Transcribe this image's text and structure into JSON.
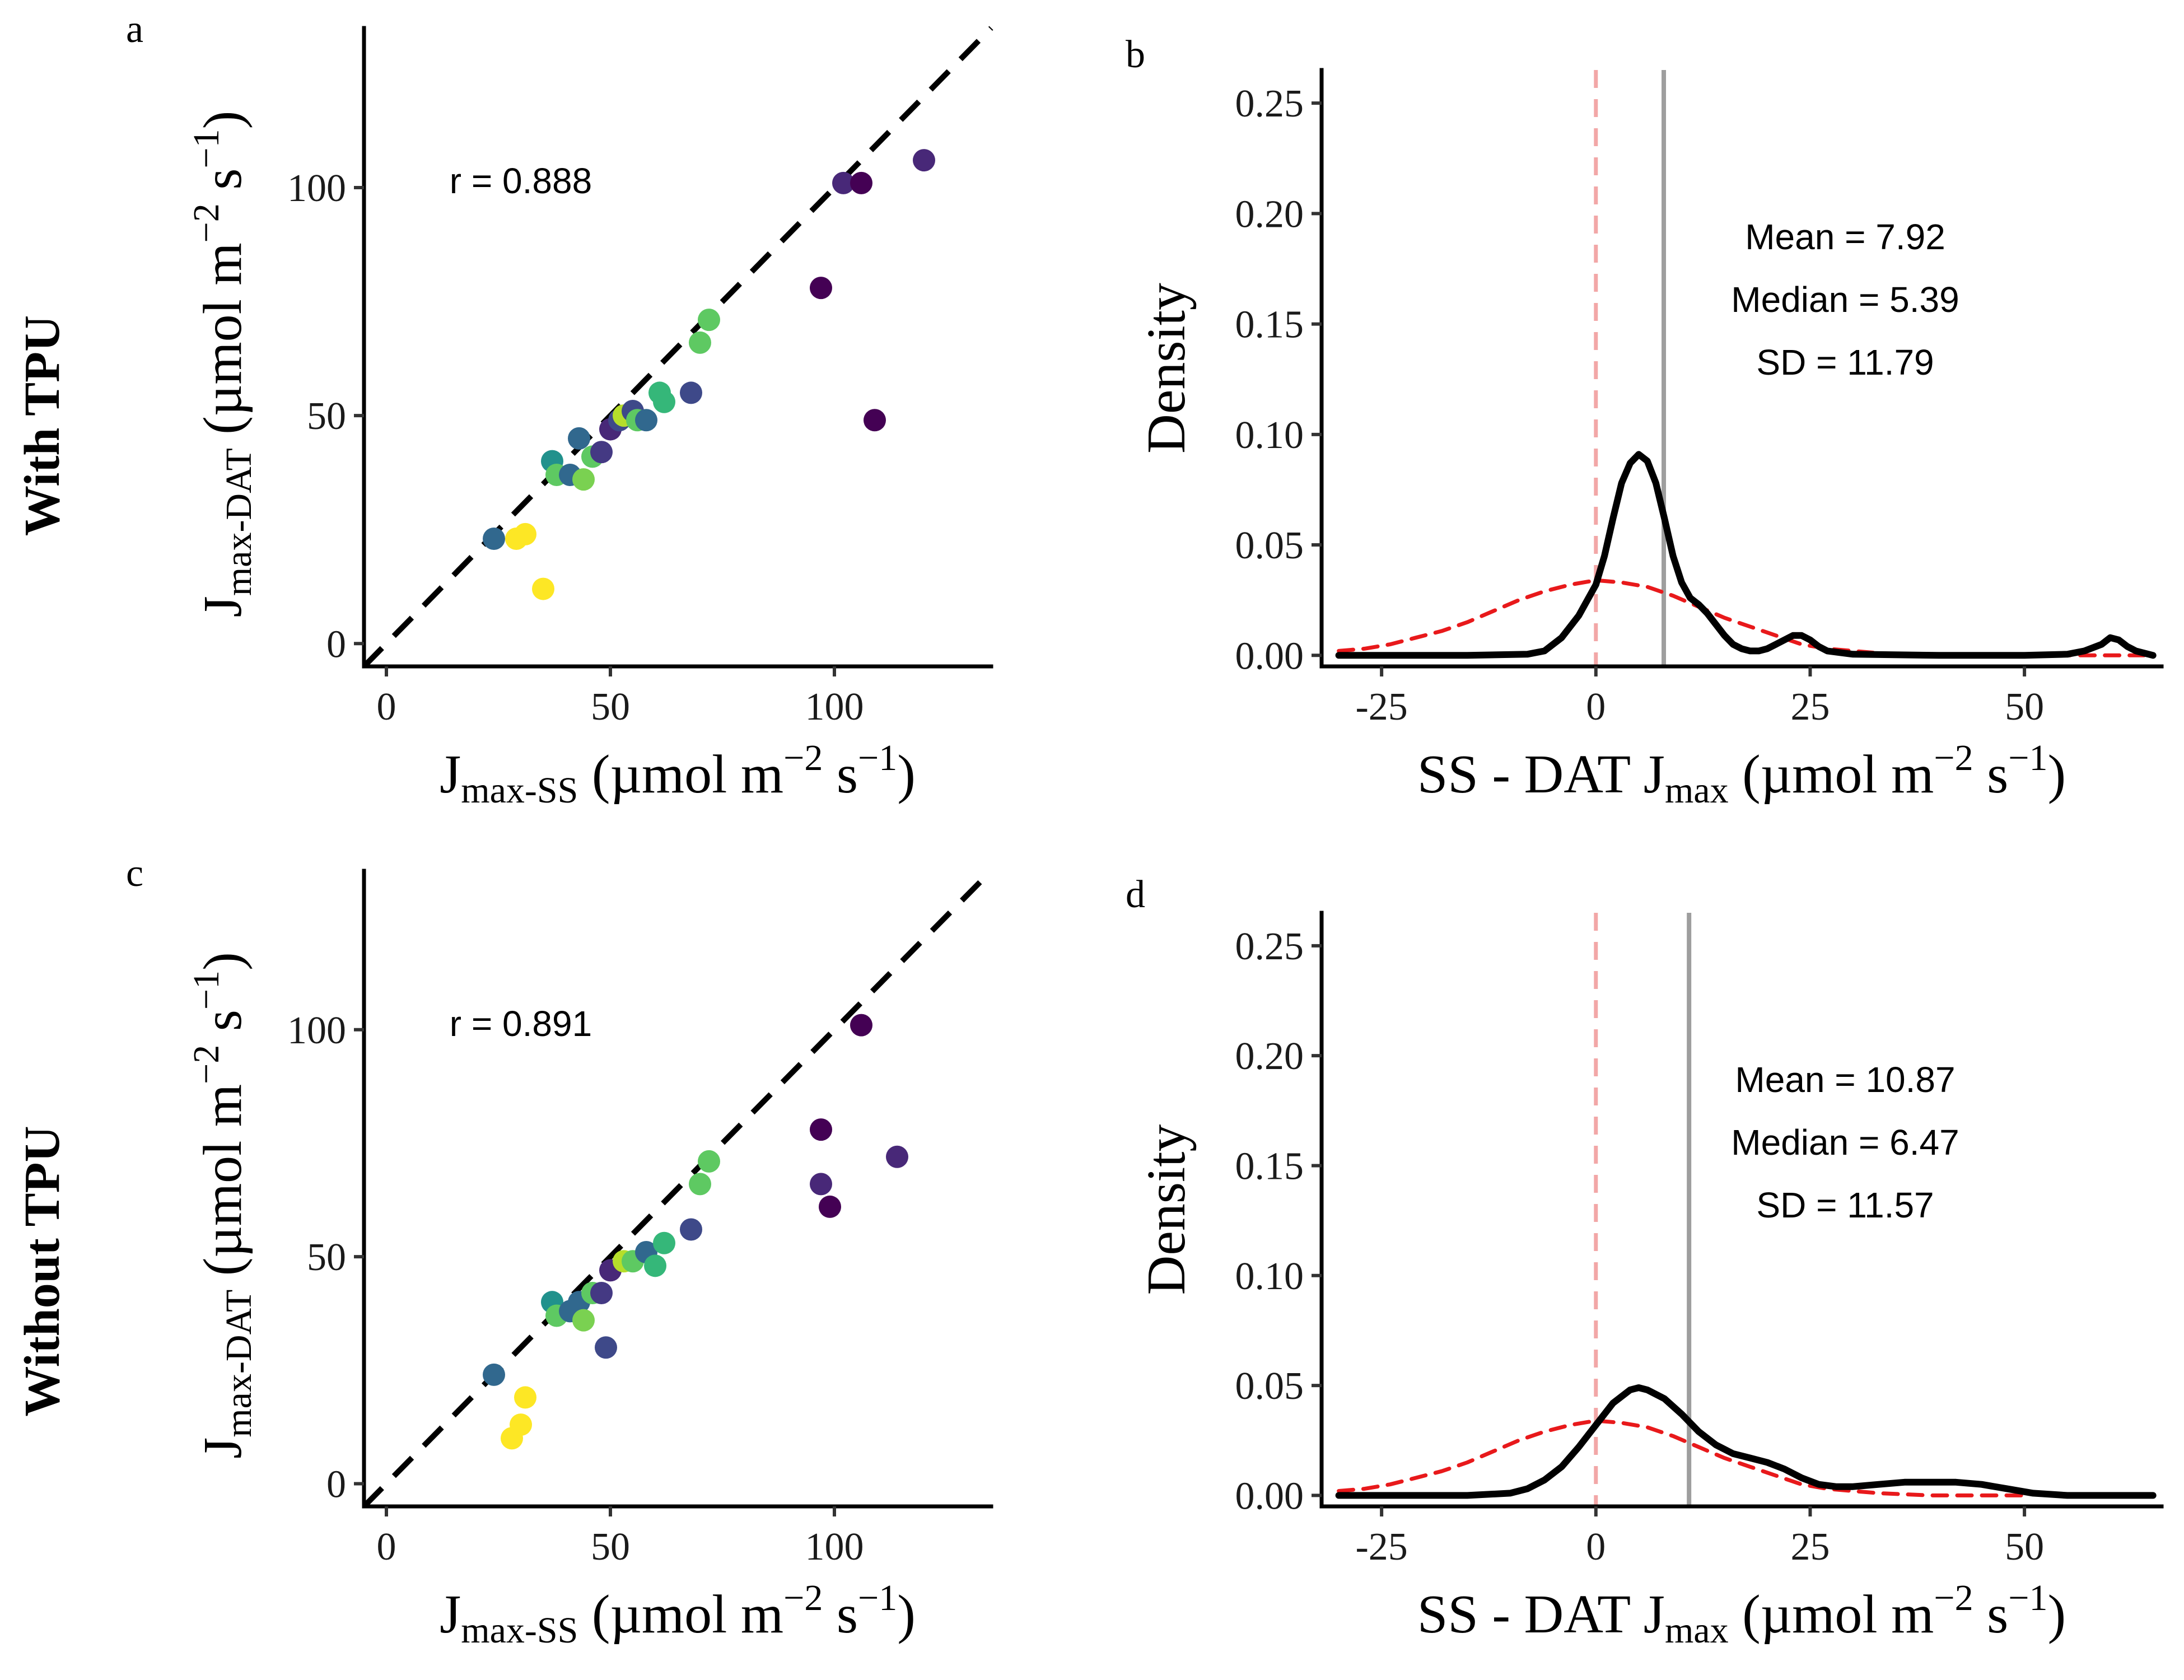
{
  "row_labels": [
    "With TPU",
    "Without TPU"
  ],
  "chart_data": [
    {
      "panel": "a",
      "type": "scatter",
      "xlabel": "J_max-SS (µmol m⁻² s⁻¹)",
      "ylabel": "J_max-DAT (µmol m⁻² s⁻¹)",
      "xlabel_main": "J",
      "xlabel_sub": "max-SS",
      "ylabel_main": "J",
      "ylabel_sub": "max-DAT",
      "unit_open": "(µmol m",
      "unit_exp1": "−2",
      "unit_mid": " s",
      "unit_exp2": "−1",
      "unit_close": ")",
      "xlim": [
        -5,
        135
      ],
      "ylim": [
        -5,
        135
      ],
      "xticks": [
        0,
        50,
        100
      ],
      "yticks": [
        0,
        50,
        100
      ],
      "reference_line": "1:1 dashed",
      "annotation": "r = 0.888",
      "points": [
        {
          "x": 24,
          "y": 23,
          "color": "#31688e"
        },
        {
          "x": 29,
          "y": 23,
          "color": "#fde725"
        },
        {
          "x": 31,
          "y": 24,
          "color": "#fde725"
        },
        {
          "x": 35,
          "y": 12,
          "color": "#fde725"
        },
        {
          "x": 37,
          "y": 40,
          "color": "#21918c"
        },
        {
          "x": 38,
          "y": 37,
          "color": "#5ec962"
        },
        {
          "x": 41,
          "y": 37,
          "color": "#31688e"
        },
        {
          "x": 43,
          "y": 45,
          "color": "#31688e"
        },
        {
          "x": 44,
          "y": 36,
          "color": "#7ad151"
        },
        {
          "x": 46,
          "y": 41,
          "color": "#5ec962"
        },
        {
          "x": 48,
          "y": 42,
          "color": "#443983"
        },
        {
          "x": 50,
          "y": 47,
          "color": "#482878"
        },
        {
          "x": 52,
          "y": 49,
          "color": "#3e4989"
        },
        {
          "x": 53,
          "y": 50,
          "color": "#b5de2b"
        },
        {
          "x": 55,
          "y": 51,
          "color": "#3e4989"
        },
        {
          "x": 56,
          "y": 49,
          "color": "#5ec962"
        },
        {
          "x": 58,
          "y": 49,
          "color": "#31688e"
        },
        {
          "x": 61,
          "y": 55,
          "color": "#35b779"
        },
        {
          "x": 62,
          "y": 53,
          "color": "#35b779"
        },
        {
          "x": 68,
          "y": 55,
          "color": "#3e4989"
        },
        {
          "x": 70,
          "y": 66,
          "color": "#5ec962"
        },
        {
          "x": 72,
          "y": 71,
          "color": "#5ec962"
        },
        {
          "x": 97,
          "y": 78,
          "color": "#440154"
        },
        {
          "x": 102,
          "y": 101,
          "color": "#482878"
        },
        {
          "x": 106,
          "y": 101,
          "color": "#440154"
        },
        {
          "x": 109,
          "y": 49,
          "color": "#440154"
        },
        {
          "x": 120,
          "y": 106,
          "color": "#482878"
        }
      ]
    },
    {
      "panel": "b",
      "type": "line",
      "xlabel": "SS - DAT J_max (µmol m⁻² s⁻¹)",
      "xlabel_main": "SS - DAT J",
      "xlabel_sub": "max",
      "unit_open": "(µmol m",
      "unit_exp1": "−2",
      "unit_mid": " s",
      "unit_exp2": "−1",
      "unit_close": ")",
      "ylabel": "Density",
      "xlim": [
        -32,
        66
      ],
      "ylim": [
        -0.005,
        0.265
      ],
      "xticks": [
        -25,
        0,
        25,
        50
      ],
      "xtick_labels": [
        "-25",
        "0",
        "25",
        "50"
      ],
      "yticks": [
        0.0,
        0.05,
        0.1,
        0.15,
        0.2,
        0.25
      ],
      "ytick_labels": [
        "0.00",
        "0.05",
        "0.10",
        "0.15",
        "0.20",
        "0.25"
      ],
      "mean_line": 7.92,
      "zero_line": 0,
      "annotations": [
        "Mean = 7.92",
        "Median = 5.39",
        "SD = 11.79"
      ],
      "series": [
        {
          "role": "observed density",
          "color": "#000000",
          "x": [
            -30,
            -15,
            -8,
            -6,
            -4,
            -2,
            0,
            1,
            2,
            3,
            4,
            5,
            6,
            7,
            8,
            9,
            10,
            11,
            12,
            13,
            14,
            15,
            16,
            17,
            18,
            19,
            20,
            21,
            22,
            23,
            24,
            25,
            26,
            27,
            30,
            40,
            50,
            55,
            57,
            59,
            60,
            61,
            62,
            63,
            65
          ],
          "y": [
            0.0,
            0.0,
            0.0005,
            0.002,
            0.008,
            0.018,
            0.032,
            0.045,
            0.062,
            0.078,
            0.087,
            0.091,
            0.088,
            0.078,
            0.062,
            0.045,
            0.033,
            0.026,
            0.023,
            0.019,
            0.014,
            0.009,
            0.005,
            0.003,
            0.002,
            0.002,
            0.003,
            0.005,
            0.007,
            0.009,
            0.009,
            0.007,
            0.004,
            0.002,
            0.0005,
            0.0,
            0.0,
            0.0005,
            0.002,
            0.005,
            0.008,
            0.007,
            0.004,
            0.002,
            0.0
          ]
        },
        {
          "role": "normal reference",
          "color": "#e8191b",
          "style": "dashed",
          "x": [
            -30,
            -27,
            -24,
            -21,
            -18,
            -15,
            -12,
            -9,
            -6,
            -3,
            0,
            3,
            6,
            9,
            12,
            15,
            18,
            21,
            24,
            27,
            30,
            33,
            36,
            39,
            42,
            45,
            48,
            51,
            54,
            57,
            60,
            63,
            65
          ],
          "y": [
            0.002,
            0.003,
            0.005,
            0.008,
            0.011,
            0.015,
            0.02,
            0.025,
            0.029,
            0.032,
            0.034,
            0.033,
            0.031,
            0.027,
            0.022,
            0.017,
            0.013,
            0.009,
            0.005,
            0.003,
            0.002,
            0.001,
            0.0005,
            0.0,
            0.0,
            0.0,
            0.0,
            0.0,
            0.0,
            0.0,
            0.0,
            0.0,
            0.0
          ]
        }
      ]
    },
    {
      "panel": "c",
      "type": "scatter",
      "xlabel": "J_max-SS (µmol m⁻² s⁻¹)",
      "ylabel": "J_max-DAT (µmol m⁻² s⁻¹)",
      "xlabel_main": "J",
      "xlabel_sub": "max-SS",
      "ylabel_main": "J",
      "ylabel_sub": "max-DAT",
      "unit_open": "(µmol m",
      "unit_exp1": "−2",
      "unit_mid": " s",
      "unit_exp2": "−1",
      "unit_close": ")",
      "xlim": [
        -5,
        135
      ],
      "ylim": [
        -5,
        135
      ],
      "xticks": [
        0,
        50,
        100
      ],
      "yticks": [
        0,
        50,
        100
      ],
      "reference_line": "1:1 dashed",
      "annotation": "r = 0.891",
      "points": [
        {
          "x": 24,
          "y": 24,
          "color": "#31688e"
        },
        {
          "x": 28,
          "y": 10,
          "color": "#fde725"
        },
        {
          "x": 30,
          "y": 13,
          "color": "#fde725"
        },
        {
          "x": 31,
          "y": 19,
          "color": "#fde725"
        },
        {
          "x": 37,
          "y": 40,
          "color": "#21918c"
        },
        {
          "x": 38,
          "y": 37,
          "color": "#5ec962"
        },
        {
          "x": 41,
          "y": 38,
          "color": "#31688e"
        },
        {
          "x": 43,
          "y": 40,
          "color": "#31688e"
        },
        {
          "x": 44,
          "y": 36,
          "color": "#7ad151"
        },
        {
          "x": 46,
          "y": 42,
          "color": "#5ec962"
        },
        {
          "x": 48,
          "y": 42,
          "color": "#443983"
        },
        {
          "x": 49,
          "y": 30,
          "color": "#3e4989"
        },
        {
          "x": 50,
          "y": 47,
          "color": "#482878"
        },
        {
          "x": 53,
          "y": 49,
          "color": "#b5de2b"
        },
        {
          "x": 55,
          "y": 49,
          "color": "#5ec962"
        },
        {
          "x": 58,
          "y": 51,
          "color": "#31688e"
        },
        {
          "x": 60,
          "y": 48,
          "color": "#35b779"
        },
        {
          "x": 62,
          "y": 53,
          "color": "#35b779"
        },
        {
          "x": 68,
          "y": 56,
          "color": "#3e4989"
        },
        {
          "x": 70,
          "y": 66,
          "color": "#5ec962"
        },
        {
          "x": 72,
          "y": 71,
          "color": "#5ec962"
        },
        {
          "x": 97,
          "y": 78,
          "color": "#440154"
        },
        {
          "x": 97,
          "y": 66,
          "color": "#482878"
        },
        {
          "x": 99,
          "y": 61,
          "color": "#440154"
        },
        {
          "x": 106,
          "y": 101,
          "color": "#440154"
        },
        {
          "x": 114,
          "y": 72,
          "color": "#482878"
        }
      ]
    },
    {
      "panel": "d",
      "type": "line",
      "xlabel": "SS - DAT J_max (µmol m⁻² s⁻¹)",
      "xlabel_main": "SS - DAT J",
      "xlabel_sub": "max",
      "unit_open": "(µmol m",
      "unit_exp1": "−2",
      "unit_mid": " s",
      "unit_exp2": "−1",
      "unit_close": ")",
      "ylabel": "Density",
      "xlim": [
        -32,
        66
      ],
      "ylim": [
        -0.005,
        0.265
      ],
      "xticks": [
        -25,
        0,
        25,
        50
      ],
      "xtick_labels": [
        "-25",
        "0",
        "25",
        "50"
      ],
      "yticks": [
        0.0,
        0.05,
        0.1,
        0.15,
        0.2,
        0.25
      ],
      "ytick_labels": [
        "0.00",
        "0.05",
        "0.10",
        "0.15",
        "0.20",
        "0.25"
      ],
      "mean_line": 10.87,
      "zero_line": 0,
      "annotations": [
        "Mean = 10.87",
        "Median = 6.47",
        "SD = 11.57"
      ],
      "series": [
        {
          "role": "observed density",
          "color": "#000000",
          "x": [
            -30,
            -15,
            -10,
            -8,
            -6,
            -4,
            -2,
            0,
            2,
            4,
            5,
            6,
            8,
            10,
            12,
            14,
            16,
            18,
            20,
            22,
            24,
            26,
            28,
            30,
            33,
            36,
            39,
            42,
            45,
            48,
            51,
            55,
            60,
            65
          ],
          "y": [
            0.0,
            0.0,
            0.001,
            0.003,
            0.007,
            0.013,
            0.022,
            0.032,
            0.042,
            0.048,
            0.049,
            0.048,
            0.044,
            0.037,
            0.029,
            0.023,
            0.019,
            0.017,
            0.015,
            0.012,
            0.008,
            0.005,
            0.004,
            0.004,
            0.005,
            0.006,
            0.006,
            0.006,
            0.005,
            0.003,
            0.001,
            0.0,
            0.0,
            0.0
          ]
        },
        {
          "role": "normal reference",
          "color": "#e8191b",
          "style": "dashed",
          "x": [
            -30,
            -27,
            -24,
            -21,
            -18,
            -15,
            -12,
            -9,
            -6,
            -3,
            0,
            3,
            6,
            9,
            12,
            15,
            18,
            21,
            24,
            27,
            30,
            33,
            36,
            39,
            42,
            45,
            48,
            50
          ],
          "y": [
            0.002,
            0.003,
            0.005,
            0.008,
            0.011,
            0.015,
            0.02,
            0.025,
            0.029,
            0.032,
            0.034,
            0.033,
            0.031,
            0.027,
            0.022,
            0.017,
            0.013,
            0.009,
            0.005,
            0.003,
            0.002,
            0.001,
            0.0005,
            0.0,
            0.0,
            0.0,
            0.0,
            0.0
          ]
        }
      ]
    }
  ]
}
